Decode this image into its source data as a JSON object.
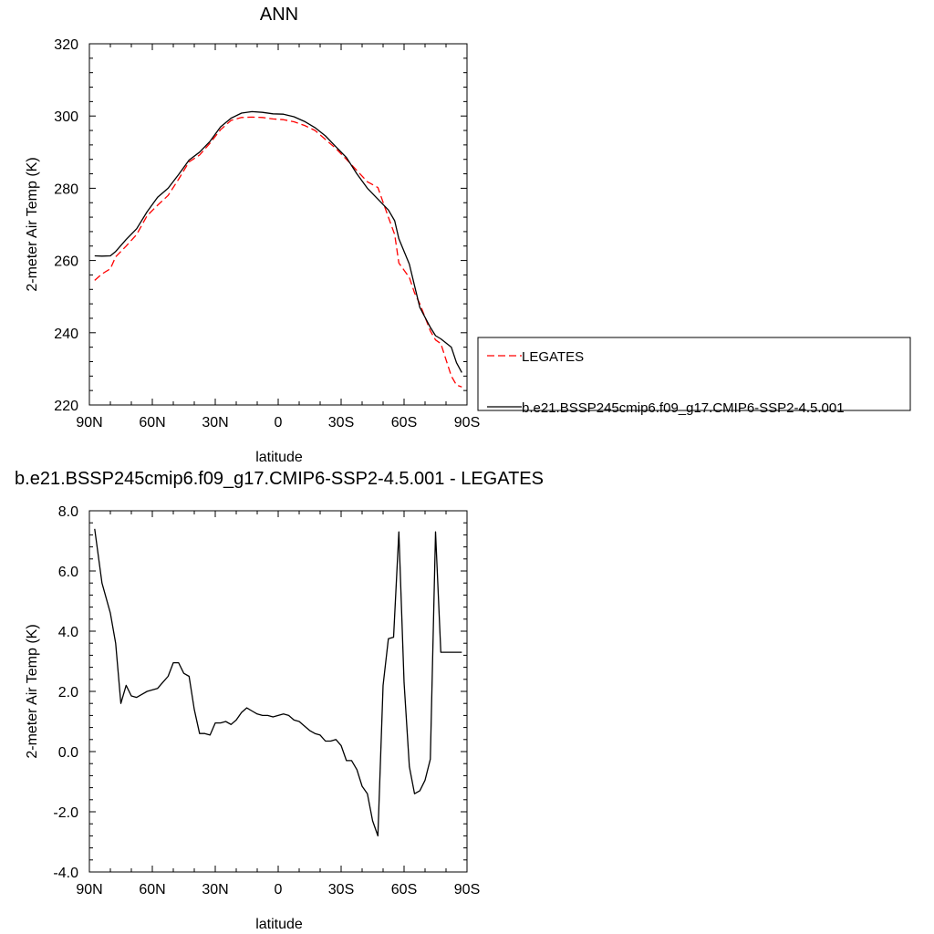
{
  "chart_data": [
    {
      "type": "line",
      "title": "ANN",
      "xlabel": "latitude",
      "ylabel": "2-meter Air Temp (K)",
      "xlim": [
        90,
        -90
      ],
      "ylim": [
        220,
        320
      ],
      "xticks": [
        90,
        60,
        30,
        0,
        -30,
        -60,
        -90
      ],
      "xtick_labels": [
        "90N",
        "60N",
        "30N",
        "0",
        "30S",
        "60S",
        "90S"
      ],
      "yticks": [
        220,
        240,
        260,
        280,
        300,
        320
      ],
      "ytick_labels": [
        "220",
        "240",
        "260",
        "280",
        "300",
        "320"
      ],
      "grid": false,
      "legend_position": "right",
      "series": [
        {
          "name": "LEGATES",
          "color": "#ff0000",
          "dash": "dashed",
          "x": [
            87.5,
            84,
            80,
            77.5,
            72.5,
            67.5,
            62.5,
            57.5,
            52.5,
            47.5,
            42.5,
            37.5,
            32.5,
            27.5,
            22.5,
            17.5,
            12.5,
            7.5,
            2.5,
            -2.5,
            -7.5,
            -12.5,
            -17.5,
            -22.5,
            -27.5,
            -32.5,
            -37.5,
            -42.5,
            -47.5,
            -52.5,
            -55.5,
            -57.5,
            -62.5,
            -65,
            -67.5,
            -72.5,
            -75,
            -77.5,
            -82.5,
            -85,
            -87.5
          ],
          "y": [
            254.5,
            256.3,
            257.7,
            261.0,
            264.0,
            267.2,
            272.4,
            275.3,
            278.0,
            282.5,
            287.3,
            289.2,
            292.5,
            296.2,
            298.8,
            299.6,
            299.7,
            299.6,
            299.2,
            299.0,
            298.4,
            297.4,
            296.0,
            293.5,
            291.0,
            288.0,
            284.9,
            281.8,
            280.2,
            272.0,
            267.2,
            259.3,
            255.3,
            251.0,
            248.0,
            240.5,
            238.0,
            237.0,
            228.0,
            225.5,
            225.0
          ]
        },
        {
          "name": "b.e21.BSSP245cmip6.f09_g17.CMIP6-SSP2-4.5.001",
          "color": "#000000",
          "dash": "solid",
          "x": [
            87.5,
            84,
            80,
            77.5,
            72.5,
            67.5,
            62.5,
            57.5,
            52.5,
            47.5,
            42.5,
            37.5,
            32.5,
            27.5,
            22.5,
            17.5,
            12.5,
            7.5,
            2.5,
            -2.5,
            -7.5,
            -12.5,
            -17.5,
            -22.5,
            -27.5,
            -32.5,
            -37.5,
            -42.5,
            -47.5,
            -52.5,
            -55.5,
            -57.5,
            -62.5,
            -65,
            -67.5,
            -72.5,
            -75,
            -77.5,
            -82.5,
            -85,
            -87.5
          ],
          "y": [
            261.3,
            261.2,
            261.3,
            262.5,
            265.8,
            268.8,
            273.5,
            277.5,
            280.0,
            283.8,
            287.8,
            290.0,
            293.0,
            297.0,
            299.4,
            300.8,
            301.2,
            301.0,
            300.6,
            300.5,
            299.8,
            298.5,
            296.8,
            294.5,
            291.5,
            288.5,
            284.0,
            280.0,
            277.0,
            274.0,
            271.0,
            266.0,
            259.0,
            253.0,
            247.0,
            241.5,
            239.2,
            238.3,
            236.0,
            231.7,
            229.0
          ]
        }
      ]
    },
    {
      "type": "line",
      "title": "b.e21.BSSP245cmip6.f09_g17.CMIP6-SSP2-4.5.001 - LEGATES",
      "xlabel": "latitude",
      "ylabel": "2-meter Air Temp (K)",
      "xlim": [
        90,
        -90
      ],
      "ylim": [
        -4.0,
        8.0
      ],
      "xticks": [
        90,
        60,
        30,
        0,
        -30,
        -60,
        -90
      ],
      "xtick_labels": [
        "90N",
        "60N",
        "30N",
        "0",
        "30S",
        "60S",
        "90S"
      ],
      "yticks": [
        -4,
        -2,
        0,
        2,
        4,
        6,
        8
      ],
      "ytick_labels": [
        "-4.0",
        "-2.0",
        "0.0",
        "2.0",
        "4.0",
        "6.0",
        "8.0"
      ],
      "grid": false,
      "series": [
        {
          "name": "",
          "color": "#000000",
          "dash": "solid",
          "x": [
            87.5,
            84,
            80,
            77.5,
            75,
            72.5,
            70,
            67.5,
            65,
            62.5,
            60,
            57.5,
            55,
            52.5,
            50,
            47.5,
            45,
            42.5,
            40,
            37.5,
            35,
            32.5,
            30,
            27.5,
            25,
            22.5,
            20,
            17.5,
            15,
            12.5,
            10,
            7.5,
            5,
            2.5,
            0,
            -2.5,
            -5,
            -7.5,
            -10,
            -12.5,
            -15,
            -17.5,
            -20,
            -22.5,
            -25,
            -27.5,
            -30,
            -32.5,
            -35,
            -37.5,
            -40,
            -42.5,
            -45,
            -47.5,
            -50,
            -52.5,
            -55,
            -57.5,
            -60,
            -62.5,
            -65,
            -67.5,
            -70,
            -72.5,
            -75,
            -77.5,
            -80,
            -82.5,
            -85,
            -87.5
          ],
          "y": [
            7.4,
            5.6,
            4.6,
            3.6,
            1.6,
            2.2,
            1.85,
            1.8,
            1.9,
            2.0,
            2.05,
            2.1,
            2.3,
            2.5,
            2.95,
            2.95,
            2.6,
            2.5,
            1.4,
            0.6,
            0.6,
            0.55,
            0.95,
            0.95,
            1.0,
            0.9,
            1.05,
            1.3,
            1.45,
            1.35,
            1.25,
            1.2,
            1.2,
            1.15,
            1.2,
            1.25,
            1.2,
            1.05,
            1.0,
            0.85,
            0.7,
            0.6,
            0.55,
            0.35,
            0.35,
            0.4,
            0.2,
            -0.3,
            -0.3,
            -0.6,
            -1.15,
            -1.4,
            -2.3,
            -2.8,
            2.2,
            3.75,
            3.8,
            7.3,
            2.3,
            -0.5,
            -1.4,
            -1.3,
            -0.95,
            -0.25,
            7.3,
            3.3,
            3.3,
            3.3,
            3.3,
            3.3
          ]
        }
      ]
    }
  ]
}
